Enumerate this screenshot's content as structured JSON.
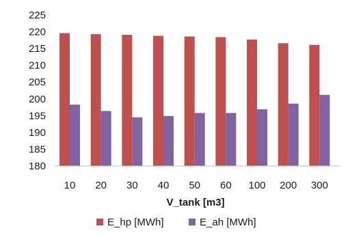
{
  "chart_data": {
    "type": "bar",
    "title": "",
    "xlabel": "V_tank [m3]",
    "ylabel": "",
    "categories": [
      "10",
      "20",
      "30",
      "40",
      "50",
      "60",
      "100",
      "200",
      "300"
    ],
    "series": [
      {
        "name": "E_hp [MWh]",
        "color": "#c0504d",
        "values": [
          219.6,
          219.3,
          219.1,
          218.8,
          218.6,
          218.4,
          217.7,
          216.6,
          216.1
        ]
      },
      {
        "name": "E_ah [MWh]",
        "color": "#8064a2",
        "values": [
          198.3,
          196.4,
          194.5,
          194.9,
          195.8,
          195.8,
          196.9,
          198.6,
          201.2
        ]
      }
    ],
    "ylim": [
      180,
      225
    ],
    "yticks": [
      180,
      185,
      190,
      195,
      200,
      205,
      210,
      215,
      220,
      225
    ],
    "grid": false,
    "legend_position": "bottom"
  }
}
